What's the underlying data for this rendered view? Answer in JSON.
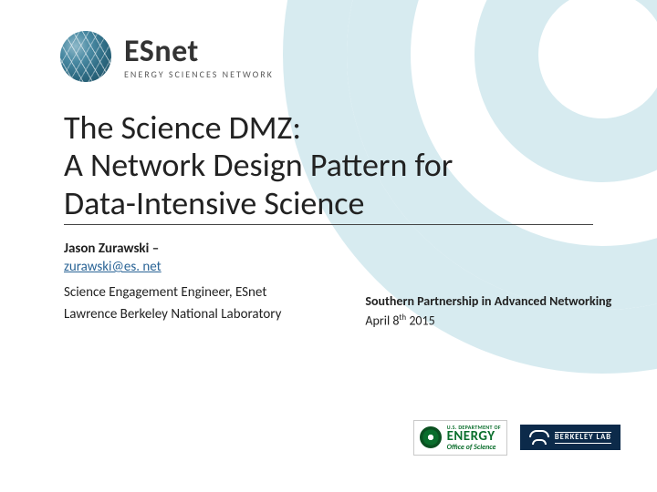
{
  "brand": {
    "name": "ESnet",
    "subtitle": "ENERGY SCIENCES NETWORK"
  },
  "title": {
    "line1": "The Science DMZ:",
    "line2": "A Network Design Pattern for",
    "line3": "Data-Intensive Science"
  },
  "author": {
    "name": "Jason Zurawski –",
    "email": "zurawski@es. net",
    "role": "Science Engagement Engineer, ESnet",
    "org": "Lawrence Berkeley National Laboratory"
  },
  "event": {
    "name": "Southern Partnership in Advanced Networking",
    "date_prefix": "April 8",
    "date_sup": "th",
    "date_suffix": " 2015"
  },
  "logos": {
    "doe_line1": "U.S. DEPARTMENT OF",
    "doe_line2": "ENERGY",
    "doe_line3": "Office of Science",
    "bl_line1": "BERKELEY LAB"
  },
  "colors": {
    "arc": "#d7ebf0",
    "text": "#222222",
    "link": "#2a6496",
    "doe_green": "#0a6e2c",
    "bl_navy": "#0c2a4a"
  }
}
